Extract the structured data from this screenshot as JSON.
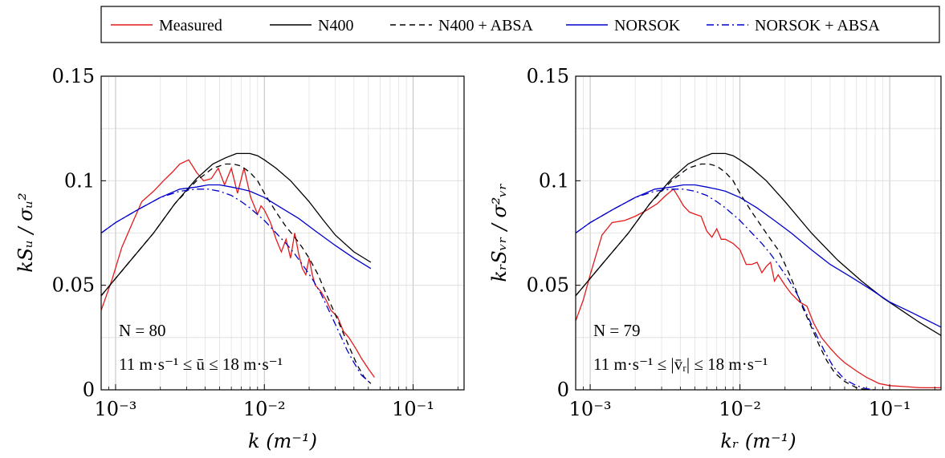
{
  "legend": {
    "position": "top",
    "entries": [
      {
        "name": "Measured",
        "color": "#e41a1c",
        "dash": "solid"
      },
      {
        "name": "N400",
        "color": "#000000",
        "dash": "solid"
      },
      {
        "name": "N400 + ABSA",
        "color": "#000000",
        "dash": "dashed"
      },
      {
        "name": "NORSOK",
        "color": "#0000cc",
        "dash": "solid"
      },
      {
        "name": "NORSOK + ABSA",
        "color": "#0000cc",
        "dash": "dashdot"
      }
    ]
  },
  "chart_data": [
    {
      "type": "line",
      "xscale": "log",
      "xlim": [
        0.0008,
        0.22
      ],
      "ylim": [
        0,
        0.15
      ],
      "grid": true,
      "xlabel": "k (m⁻¹)",
      "ylabel": "kSᵤ / σᵤ²",
      "yticks": [
        {
          "v": 0,
          "label": "0"
        },
        {
          "v": 0.05,
          "label": "0.05"
        },
        {
          "v": 0.1,
          "label": "0.1"
        },
        {
          "v": 0.15,
          "label": "0.15"
        }
      ],
      "xticks": [
        {
          "v": 0.001,
          "label": "10⁻³"
        },
        {
          "v": 0.01,
          "label": "10⁻²"
        },
        {
          "v": 0.1,
          "label": "10⁻¹"
        }
      ],
      "annotations": [
        "N = 80",
        "11 m·s⁻¹ ≤ ū ≤ 18 m·s⁻¹"
      ],
      "series": [
        {
          "name": "Measured",
          "x": [
            0.0008,
            0.00095,
            0.0011,
            0.0013,
            0.0015,
            0.0018,
            0.0021,
            0.0024,
            0.0027,
            0.0031,
            0.0035,
            0.0039,
            0.0044,
            0.0049,
            0.0054,
            0.006,
            0.0066,
            0.0073,
            0.0081,
            0.009,
            0.0095,
            0.01,
            0.011,
            0.012,
            0.013,
            0.014,
            0.015,
            0.016,
            0.017,
            0.018,
            0.019,
            0.02,
            0.021,
            0.022,
            0.024,
            0.026,
            0.028,
            0.031,
            0.034,
            0.037,
            0.041,
            0.045,
            0.05,
            0.055
          ],
          "y": [
            0.038,
            0.053,
            0.068,
            0.08,
            0.09,
            0.095,
            0.1,
            0.104,
            0.108,
            0.11,
            0.104,
            0.1,
            0.101,
            0.106,
            0.098,
            0.106,
            0.094,
            0.106,
            0.092,
            0.084,
            0.088,
            0.086,
            0.08,
            0.072,
            0.066,
            0.072,
            0.063,
            0.075,
            0.065,
            0.058,
            0.055,
            0.063,
            0.055,
            0.05,
            0.047,
            0.043,
            0.038,
            0.035,
            0.028,
            0.025,
            0.02,
            0.015,
            0.01,
            0.006
          ]
        },
        {
          "name": "N400",
          "x": [
            0.0008,
            0.0012,
            0.0018,
            0.0025,
            0.0035,
            0.0045,
            0.0055,
            0.0065,
            0.0072,
            0.008,
            0.009,
            0.01,
            0.012,
            0.015,
            0.02,
            0.025,
            0.03,
            0.04,
            0.052
          ],
          "y": [
            0.045,
            0.06,
            0.075,
            0.089,
            0.101,
            0.108,
            0.111,
            0.113,
            0.113,
            0.113,
            0.112,
            0.11,
            0.106,
            0.1,
            0.09,
            0.081,
            0.074,
            0.066,
            0.061
          ]
        },
        {
          "name": "N400 + ABSA",
          "x": [
            0.0008,
            0.0012,
            0.0018,
            0.0025,
            0.0035,
            0.0045,
            0.0055,
            0.0062,
            0.007,
            0.008,
            0.009,
            0.01,
            0.012,
            0.014,
            0.016,
            0.018,
            0.02,
            0.023,
            0.026,
            0.03,
            0.034,
            0.038,
            0.042,
            0.047,
            0.052
          ],
          "y": [
            0.045,
            0.06,
            0.075,
            0.089,
            0.1,
            0.106,
            0.108,
            0.108,
            0.107,
            0.104,
            0.1,
            0.094,
            0.085,
            0.078,
            0.073,
            0.068,
            0.063,
            0.055,
            0.046,
            0.036,
            0.027,
            0.019,
            0.012,
            0.006,
            0.003
          ]
        },
        {
          "name": "NORSOK",
          "x": [
            0.0008,
            0.001,
            0.0014,
            0.002,
            0.0027,
            0.0035,
            0.0042,
            0.005,
            0.006,
            0.007,
            0.008,
            0.01,
            0.013,
            0.017,
            0.022,
            0.03,
            0.04,
            0.052
          ],
          "y": [
            0.075,
            0.08,
            0.086,
            0.092,
            0.096,
            0.097,
            0.098,
            0.098,
            0.097,
            0.096,
            0.095,
            0.092,
            0.087,
            0.082,
            0.076,
            0.069,
            0.063,
            0.058
          ]
        },
        {
          "name": "NORSOK + ABSA",
          "x": [
            0.0008,
            0.001,
            0.0014,
            0.002,
            0.0027,
            0.0035,
            0.0042,
            0.005,
            0.006,
            0.007,
            0.008,
            0.01,
            0.012,
            0.014,
            0.016,
            0.018,
            0.021,
            0.024,
            0.028,
            0.032,
            0.036,
            0.04,
            0.045,
            0.052
          ],
          "y": [
            0.075,
            0.08,
            0.086,
            0.092,
            0.095,
            0.096,
            0.096,
            0.095,
            0.093,
            0.09,
            0.087,
            0.081,
            0.075,
            0.07,
            0.065,
            0.06,
            0.053,
            0.046,
            0.036,
            0.027,
            0.019,
            0.013,
            0.007,
            0.003
          ]
        }
      ]
    },
    {
      "type": "line",
      "xscale": "log",
      "xlim": [
        0.0008,
        0.22
      ],
      "ylim": [
        0,
        0.15
      ],
      "grid": true,
      "xlabel": "kᵣ (m⁻¹)",
      "ylabel": "kᵣSᵥᵣ / σ²ᵥᵣ",
      "yticks": [
        {
          "v": 0,
          "label": "0"
        },
        {
          "v": 0.05,
          "label": "0.05"
        },
        {
          "v": 0.1,
          "label": "0.1"
        },
        {
          "v": 0.15,
          "label": "0.15"
        }
      ],
      "xticks": [
        {
          "v": 0.001,
          "label": "10⁻³"
        },
        {
          "v": 0.01,
          "label": "10⁻²"
        },
        {
          "v": 0.1,
          "label": "10⁻¹"
        }
      ],
      "annotations": [
        "N = 79",
        "11 m·s⁻¹ ≤ |v̄ᵣ| ≤ 18 m·s⁻¹"
      ],
      "series": [
        {
          "name": "Measured",
          "x": [
            0.0008,
            0.0009,
            0.001,
            0.0011,
            0.0012,
            0.0014,
            0.0017,
            0.002,
            0.0024,
            0.0028,
            0.0032,
            0.0036,
            0.0039,
            0.0042,
            0.0046,
            0.005,
            0.0055,
            0.006,
            0.0065,
            0.007,
            0.0075,
            0.008,
            0.009,
            0.01,
            0.011,
            0.012,
            0.013,
            0.014,
            0.015,
            0.016,
            0.017,
            0.018,
            0.02,
            0.022,
            0.025,
            0.028,
            0.031,
            0.035,
            0.04,
            0.045,
            0.05,
            0.06,
            0.07,
            0.085,
            0.1,
            0.13,
            0.16,
            0.2,
            0.22
          ],
          "y": [
            0.033,
            0.043,
            0.055,
            0.065,
            0.074,
            0.08,
            0.081,
            0.083,
            0.086,
            0.089,
            0.093,
            0.096,
            0.092,
            0.088,
            0.085,
            0.084,
            0.083,
            0.076,
            0.073,
            0.077,
            0.072,
            0.072,
            0.07,
            0.067,
            0.06,
            0.06,
            0.061,
            0.056,
            0.059,
            0.061,
            0.052,
            0.055,
            0.05,
            0.046,
            0.042,
            0.04,
            0.032,
            0.025,
            0.02,
            0.016,
            0.013,
            0.009,
            0.006,
            0.003,
            0.002,
            0.0015,
            0.001,
            0.001,
            0.001
          ]
        },
        {
          "name": "N400",
          "x": [
            0.0008,
            0.0012,
            0.0018,
            0.0025,
            0.0035,
            0.0045,
            0.0055,
            0.0065,
            0.007,
            0.008,
            0.009,
            0.01,
            0.012,
            0.015,
            0.02,
            0.03,
            0.045,
            0.065,
            0.09,
            0.12,
            0.16,
            0.22
          ],
          "y": [
            0.045,
            0.06,
            0.075,
            0.089,
            0.101,
            0.108,
            0.111,
            0.113,
            0.113,
            0.113,
            0.112,
            0.11,
            0.106,
            0.1,
            0.09,
            0.075,
            0.062,
            0.052,
            0.044,
            0.038,
            0.032,
            0.026
          ]
        },
        {
          "name": "N400 + ABSA",
          "x": [
            0.0008,
            0.0012,
            0.0018,
            0.0025,
            0.0035,
            0.0045,
            0.0055,
            0.0062,
            0.007,
            0.008,
            0.009,
            0.01,
            0.012,
            0.014,
            0.016,
            0.018,
            0.02,
            0.023,
            0.026,
            0.03,
            0.034,
            0.038,
            0.043,
            0.05,
            0.06,
            0.07
          ],
          "y": [
            0.045,
            0.06,
            0.075,
            0.089,
            0.1,
            0.106,
            0.108,
            0.108,
            0.107,
            0.104,
            0.1,
            0.094,
            0.085,
            0.078,
            0.072,
            0.067,
            0.06,
            0.05,
            0.04,
            0.03,
            0.021,
            0.014,
            0.008,
            0.004,
            0.001,
            0.0
          ]
        },
        {
          "name": "NORSOK",
          "x": [
            0.0008,
            0.001,
            0.0014,
            0.002,
            0.0027,
            0.0035,
            0.0042,
            0.005,
            0.006,
            0.007,
            0.008,
            0.01,
            0.013,
            0.017,
            0.022,
            0.03,
            0.04,
            0.055,
            0.075,
            0.1,
            0.14,
            0.22
          ],
          "y": [
            0.075,
            0.08,
            0.086,
            0.092,
            0.096,
            0.097,
            0.098,
            0.098,
            0.097,
            0.096,
            0.095,
            0.092,
            0.087,
            0.081,
            0.075,
            0.067,
            0.06,
            0.054,
            0.048,
            0.042,
            0.037,
            0.03
          ]
        },
        {
          "name": "NORSOK + ABSA",
          "x": [
            0.0008,
            0.001,
            0.0014,
            0.002,
            0.0027,
            0.0035,
            0.0042,
            0.005,
            0.006,
            0.007,
            0.008,
            0.01,
            0.012,
            0.014,
            0.016,
            0.018,
            0.021,
            0.024,
            0.028,
            0.032,
            0.037,
            0.042,
            0.05,
            0.06,
            0.07,
            0.08
          ],
          "y": [
            0.075,
            0.08,
            0.086,
            0.092,
            0.095,
            0.096,
            0.096,
            0.095,
            0.093,
            0.09,
            0.087,
            0.081,
            0.075,
            0.07,
            0.065,
            0.06,
            0.053,
            0.046,
            0.036,
            0.027,
            0.018,
            0.011,
            0.005,
            0.002,
            0.0005,
            0.0
          ]
        }
      ]
    }
  ]
}
